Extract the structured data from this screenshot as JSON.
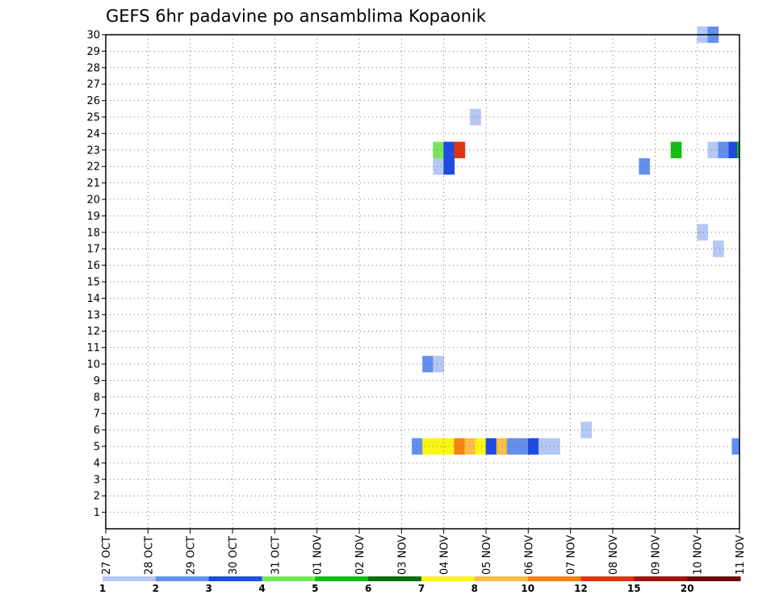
{
  "chart_data": {
    "type": "heatmap",
    "title": "GEFS 6hr padavine po ansamblima Kopaonik",
    "xlabel": "",
    "ylabel": "",
    "x_ticks": [
      "27 OCT",
      "28 OCT",
      "29 OCT",
      "30 OCT",
      "31 OCT",
      "01 NOV",
      "02 NOV",
      "03 NOV",
      "04 NOV",
      "05 NOV",
      "06 NOV",
      "07 NOV",
      "08 NOV",
      "09 NOV",
      "10 NOV",
      "11 NOV"
    ],
    "y_ticks": [
      1,
      2,
      3,
      4,
      5,
      6,
      7,
      8,
      9,
      10,
      11,
      12,
      13,
      14,
      15,
      16,
      17,
      18,
      19,
      20,
      21,
      22,
      23,
      24,
      25,
      26,
      27,
      28,
      29,
      30
    ],
    "xlim": [
      0,
      60
    ],
    "ylim": [
      0,
      30
    ],
    "grid": true,
    "colorbar": {
      "labels": [
        "1",
        "2",
        "3",
        "4",
        "5",
        "6",
        "7",
        "8",
        "10",
        "12",
        "15",
        "20"
      ],
      "colors": [
        "#b4c8f5",
        "#6490eb",
        "#1e4be1",
        "#78e65a",
        "#14be14",
        "#0a6e0a",
        "#faf514",
        "#fabe46",
        "#f58214",
        "#e13214",
        "#a01414",
        "#6e0a0a"
      ]
    },
    "cells": [
      {
        "x": 29.5,
        "y": 5,
        "c": 1
      },
      {
        "x": 30.5,
        "y": 5,
        "c": 6
      },
      {
        "x": 31.5,
        "y": 5,
        "c": 6
      },
      {
        "x": 32.5,
        "y": 5,
        "c": 6
      },
      {
        "x": 33.5,
        "y": 5,
        "c": 8
      },
      {
        "x": 34.5,
        "y": 5,
        "c": 7
      },
      {
        "x": 35.5,
        "y": 5,
        "c": 6
      },
      {
        "x": 36.5,
        "y": 5,
        "c": 2
      },
      {
        "x": 37.5,
        "y": 5,
        "c": 7
      },
      {
        "x": 38.5,
        "y": 5,
        "c": 1
      },
      {
        "x": 39.5,
        "y": 5,
        "c": 1
      },
      {
        "x": 40.5,
        "y": 5,
        "c": 2
      },
      {
        "x": 41.5,
        "y": 5,
        "c": 0
      },
      {
        "x": 42.5,
        "y": 5,
        "c": 0
      },
      {
        "x": 45.5,
        "y": 6,
        "c": 0
      },
      {
        "x": 59.8,
        "y": 5,
        "c": 1
      },
      {
        "x": 30.5,
        "y": 10,
        "c": 1
      },
      {
        "x": 31.5,
        "y": 10,
        "c": 0
      },
      {
        "x": 31.5,
        "y": 22,
        "c": 0
      },
      {
        "x": 31.5,
        "y": 23,
        "c": 3
      },
      {
        "x": 32.5,
        "y": 22,
        "c": 2
      },
      {
        "x": 32.5,
        "y": 23,
        "c": 2
      },
      {
        "x": 33.5,
        "y": 23,
        "c": 9
      },
      {
        "x": 35.0,
        "y": 25,
        "c": 0
      },
      {
        "x": 51.0,
        "y": 22,
        "c": 1
      },
      {
        "x": 54.0,
        "y": 23,
        "c": 4
      },
      {
        "x": 56.5,
        "y": 18,
        "c": 0
      },
      {
        "x": 56.5,
        "y": 30,
        "c": 0
      },
      {
        "x": 57.5,
        "y": 30,
        "c": 1
      },
      {
        "x": 57.5,
        "y": 23,
        "c": 0
      },
      {
        "x": 58.0,
        "y": 17,
        "c": 0
      },
      {
        "x": 58.5,
        "y": 23,
        "c": 1
      },
      {
        "x": 59.5,
        "y": 23,
        "c": 2
      },
      {
        "x": 60.3,
        "y": 23,
        "c": 4
      }
    ]
  }
}
